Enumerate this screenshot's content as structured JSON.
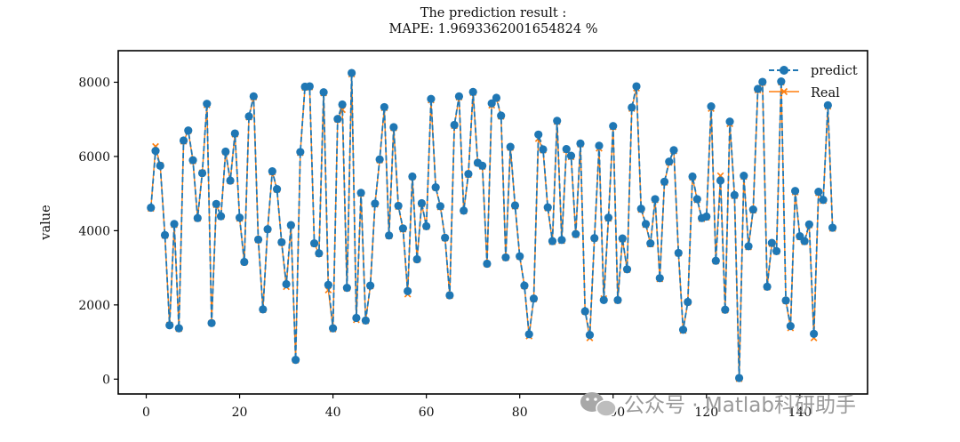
{
  "chart_data": {
    "type": "line",
    "title": "The prediction result :",
    "subtitle": "MAPE: 1.9693362001654824 %",
    "xlabel": "",
    "ylabel": "value",
    "xlim": [
      -6,
      154.5
    ],
    "ylim": [
      -400,
      8850
    ],
    "xticks": [
      0,
      20,
      40,
      60,
      80,
      100,
      120,
      140
    ],
    "yticks": [
      0,
      2000,
      4000,
      6000,
      8000
    ],
    "legend_position": "top-right",
    "grid": false,
    "series": [
      {
        "name": "predict",
        "color": "#1f77b4",
        "style": "dashed line with round markers",
        "x": [
          1,
          2,
          3,
          4,
          5,
          6,
          7,
          8,
          9,
          10,
          11,
          12,
          13,
          14,
          15,
          16,
          17,
          18,
          19,
          20,
          21,
          22,
          23,
          24,
          25,
          26,
          27,
          28,
          29,
          30,
          31,
          32,
          33,
          34,
          35,
          36,
          37,
          38,
          39,
          40,
          41,
          42,
          43,
          44,
          45,
          46,
          47,
          48,
          49,
          50,
          51,
          52,
          53,
          54,
          55,
          56,
          57,
          58,
          59,
          60,
          61,
          62,
          63,
          64,
          65,
          66,
          67,
          68,
          69,
          70,
          71,
          72,
          73,
          74,
          75,
          76,
          77,
          78,
          79,
          80,
          81,
          82,
          83,
          84,
          85,
          86,
          87,
          88,
          89,
          90,
          91,
          92,
          93,
          94,
          95,
          96,
          97,
          98,
          99,
          100,
          101,
          102,
          103,
          104,
          105,
          106,
          107,
          108,
          109,
          110,
          111,
          112,
          113,
          114,
          115,
          116,
          117,
          118,
          119,
          120,
          121,
          122,
          123,
          124,
          125,
          126,
          127,
          128,
          129,
          130,
          131,
          132,
          133,
          134,
          135,
          136,
          137,
          138,
          139,
          140,
          141,
          142,
          143,
          144,
          145,
          146,
          147
        ],
        "values": [
          4620,
          6150,
          5750,
          3880,
          1450,
          4180,
          1370,
          6430,
          6700,
          5900,
          4340,
          5550,
          7420,
          1510,
          4720,
          4390,
          6130,
          5350,
          6620,
          4350,
          3160,
          7080,
          7620,
          3760,
          1880,
          4040,
          5600,
          5120,
          3690,
          2560,
          4150,
          520,
          6120,
          7880,
          7890,
          3660,
          3390,
          7730,
          2540,
          1370,
          7010,
          7400,
          2460,
          8250,
          1650,
          5020,
          1580,
          2520,
          4730,
          5920,
          7330,
          3870,
          6790,
          4670,
          4060,
          2370,
          5460,
          3230,
          4740,
          4120,
          7550,
          5170,
          4660,
          3810,
          2260,
          6850,
          7620,
          4540,
          5530,
          7740,
          5830,
          5750,
          3110,
          7430,
          7580,
          7100,
          3280,
          6260,
          4680,
          3310,
          2520,
          1210,
          2170,
          6590,
          6190,
          4630,
          3720,
          6960,
          3750,
          6200,
          6020,
          3910,
          6350,
          1830,
          1190,
          3800,
          6290,
          2130,
          4350,
          6820,
          2130,
          3790,
          2960,
          7320,
          7890,
          4590,
          4180,
          3660,
          4850,
          2720,
          5320,
          5860,
          6170,
          3400,
          1330,
          2080,
          5460,
          4850,
          4340,
          4380,
          7350,
          3190,
          5350,
          1870,
          6940,
          4960,
          30,
          5480,
          3580,
          4570,
          7820,
          8010,
          2490,
          3670,
          3450,
          8020,
          2120,
          1430,
          5070,
          3850,
          3720,
          4170,
          1220,
          5050,
          4830,
          7380,
          4080
        ]
      },
      {
        "name": "Real",
        "color": "#ff7f0e",
        "style": "solid line with x markers",
        "x": [
          1,
          2,
          3,
          4,
          5,
          6,
          7,
          8,
          9,
          10,
          11,
          12,
          13,
          14,
          15,
          16,
          17,
          18,
          19,
          20,
          21,
          22,
          23,
          24,
          25,
          26,
          27,
          28,
          29,
          30,
          31,
          32,
          33,
          34,
          35,
          36,
          37,
          38,
          39,
          40,
          41,
          42,
          43,
          44,
          45,
          46,
          47,
          48,
          49,
          50,
          51,
          52,
          53,
          54,
          55,
          56,
          57,
          58,
          59,
          60,
          61,
          62,
          63,
          64,
          65,
          66,
          67,
          68,
          69,
          70,
          71,
          72,
          73,
          74,
          75,
          76,
          77,
          78,
          79,
          80,
          81,
          82,
          83,
          84,
          85,
          86,
          87,
          88,
          89,
          90,
          91,
          92,
          93,
          94,
          95,
          96,
          97,
          98,
          99,
          100,
          101,
          102,
          103,
          104,
          105,
          106,
          107,
          108,
          109,
          110,
          111,
          112,
          113,
          114,
          115,
          116,
          117,
          118,
          119,
          120,
          121,
          122,
          123,
          124,
          125,
          126,
          127,
          128,
          129,
          130,
          131,
          132,
          133,
          134,
          135,
          136,
          137,
          138,
          139,
          140,
          141,
          142,
          143,
          144,
          145,
          146,
          147
        ],
        "values": [
          4600,
          6270,
          5760,
          3870,
          1460,
          4160,
          1360,
          6410,
          6690,
          5880,
          4330,
          5560,
          7390,
          1510,
          4700,
          4380,
          6120,
          5340,
          6600,
          4330,
          3150,
          7060,
          7600,
          3750,
          1870,
          4030,
          5580,
          5110,
          3680,
          2490,
          4140,
          510,
          6100,
          7860,
          7870,
          3650,
          3380,
          7710,
          2400,
          1350,
          7000,
          7260,
          2450,
          8220,
          1600,
          5000,
          1570,
          2510,
          4710,
          5900,
          7310,
          3860,
          6770,
          4650,
          4040,
          2290,
          5450,
          3220,
          4720,
          4110,
          7520,
          5160,
          4640,
          3800,
          2250,
          6830,
          7600,
          4530,
          5510,
          7720,
          5820,
          5730,
          3100,
          7380,
          7560,
          7080,
          3270,
          6240,
          4660,
          3300,
          2510,
          1160,
          2160,
          6480,
          6170,
          4610,
          3700,
          6940,
          3730,
          6180,
          5990,
          3890,
          6330,
          1820,
          1110,
          3790,
          6220,
          2170,
          4330,
          6800,
          2120,
          3770,
          2950,
          7290,
          7840,
          4570,
          4160,
          3640,
          4830,
          2700,
          5300,
          5840,
          6150,
          3390,
          1310,
          2070,
          5440,
          4830,
          4320,
          4360,
          7290,
          3180,
          5480,
          1860,
          6880,
          4940,
          10,
          5460,
          3560,
          4550,
          7790,
          7990,
          2480,
          3650,
          3440,
          8000,
          2110,
          1380,
          5040,
          3830,
          3700,
          4150,
          1110,
          5020,
          4810,
          7350,
          4060
        ]
      }
    ]
  },
  "watermark": {
    "text": "公众号 · Matlab科研助手",
    "icon": "wechat-icon"
  }
}
